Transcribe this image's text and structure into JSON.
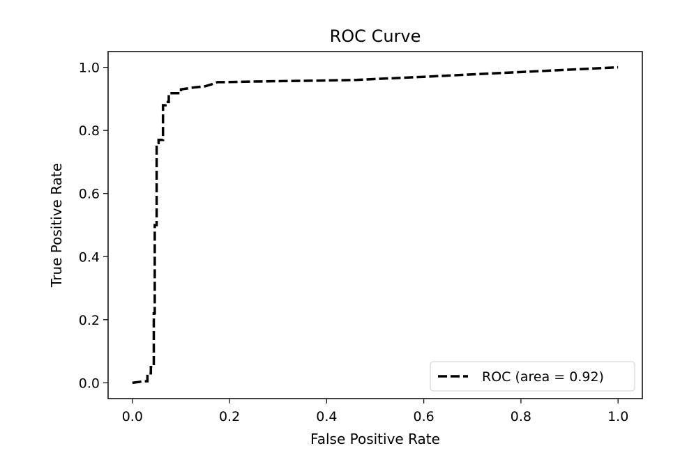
{
  "chart_data": {
    "type": "line",
    "title": "ROC Curve",
    "xlabel": "False Positive Rate",
    "ylabel": "True Positive Rate",
    "xlim": [
      -0.05,
      1.05
    ],
    "ylim": [
      -0.05,
      1.05
    ],
    "xticks": [
      0.0,
      0.2,
      0.4,
      0.6,
      0.8,
      1.0
    ],
    "yticks": [
      0.0,
      0.2,
      0.4,
      0.6,
      0.8,
      1.0
    ],
    "xtick_labels": [
      "0.0",
      "0.2",
      "0.4",
      "0.6",
      "0.8",
      "1.0"
    ],
    "ytick_labels": [
      "0.0",
      "0.2",
      "0.4",
      "0.6",
      "0.8",
      "1.0"
    ],
    "grid": false,
    "legend_position": "lower-right",
    "series": [
      {
        "name": "ROC (area = 0.92)",
        "color": "#000000",
        "line_style": "dashed",
        "x": [
          0.0,
          0.025,
          0.031,
          0.031,
          0.038,
          0.038,
          0.044,
          0.044,
          0.046,
          0.046,
          0.05,
          0.05,
          0.054,
          0.054,
          0.063,
          0.063,
          0.068,
          0.068,
          0.075,
          0.075,
          0.1,
          0.1,
          0.13,
          0.15,
          0.165,
          0.175,
          0.19,
          0.25,
          0.38,
          0.46,
          0.6,
          0.8,
          1.0
        ],
        "y": [
          0.0,
          0.005,
          0.005,
          0.03,
          0.03,
          0.05,
          0.05,
          0.22,
          0.22,
          0.5,
          0.5,
          0.76,
          0.76,
          0.77,
          0.77,
          0.88,
          0.88,
          0.89,
          0.89,
          0.918,
          0.918,
          0.93,
          0.937,
          0.94,
          0.947,
          0.953,
          0.953,
          0.955,
          0.958,
          0.96,
          0.97,
          0.985,
          1.0
        ]
      }
    ]
  }
}
